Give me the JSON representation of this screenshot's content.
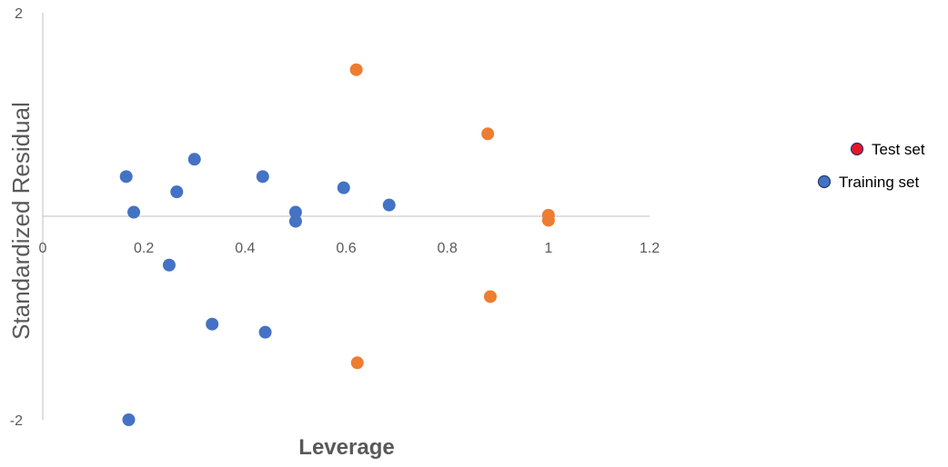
{
  "chart_data": {
    "type": "scatter",
    "title": "",
    "xlabel": "Leverage",
    "ylabel": "Standardized Residual",
    "xlim": [
      0,
      1.2
    ],
    "ylim": [
      -2,
      2
    ],
    "x_ticks": [
      "0",
      "0.2",
      "0.4",
      "0.6",
      "0.8",
      "1",
      "1.2"
    ],
    "y_ticks": [
      {
        "value": 2,
        "label": "2"
      },
      {
        "value": -2,
        "label": "-2"
      }
    ],
    "grid": false,
    "legend_position": "right",
    "series": [
      {
        "name": "Test set",
        "color": "#ED7D31",
        "legend_color": "#E8142B",
        "points": [
          {
            "x": 0.62,
            "y": 1.44
          },
          {
            "x": 0.88,
            "y": 0.81
          },
          {
            "x": 1.0,
            "y": 0.01
          },
          {
            "x": 1.0,
            "y": -0.04
          },
          {
            "x": 0.885,
            "y": -0.79
          },
          {
            "x": 0.622,
            "y": -1.44
          }
        ]
      },
      {
        "name": "Training set",
        "color": "#4472C4",
        "legend_color": "#4472C4",
        "points": [
          {
            "x": 0.165,
            "y": 0.39
          },
          {
            "x": 0.18,
            "y": 0.04
          },
          {
            "x": 0.265,
            "y": 0.24
          },
          {
            "x": 0.3,
            "y": 0.56
          },
          {
            "x": 0.435,
            "y": 0.39
          },
          {
            "x": 0.5,
            "y": 0.04
          },
          {
            "x": 0.5,
            "y": -0.05
          },
          {
            "x": 0.595,
            "y": 0.28
          },
          {
            "x": 0.685,
            "y": 0.11
          },
          {
            "x": 0.25,
            "y": -0.48
          },
          {
            "x": 0.335,
            "y": -1.06
          },
          {
            "x": 0.44,
            "y": -1.14
          },
          {
            "x": 0.17,
            "y": -2.0
          }
        ]
      }
    ]
  }
}
